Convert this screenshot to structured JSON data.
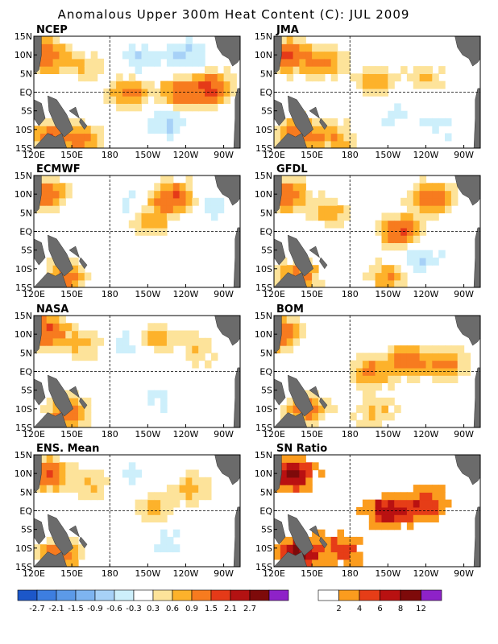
{
  "title": "Anomalous Upper 300m Heat Content (C): JUL 2009",
  "chart_data": [
    {
      "type": "heatmap",
      "title": "NCEP",
      "color_scale": "anomaly",
      "x_tick_labels": [
        "120E",
        "150E",
        "180",
        "150W",
        "120W",
        "90W"
      ],
      "y_tick_labels": [
        "15N",
        "10N",
        "5N",
        "EQ",
        "5S",
        "10S",
        "15S"
      ],
      "anomaly_centers": [
        {
          "lon": 130,
          "lat": 10,
          "value": 1.4
        },
        {
          "lon": 160,
          "lat": 7,
          "value": 0.6
        },
        {
          "lon": 195,
          "lat": 0,
          "value": 1.0
        },
        {
          "lon": 235,
          "lat": 0,
          "value": 1.2
        },
        {
          "lon": 260,
          "lat": 1,
          "value": 1.6
        },
        {
          "lon": 135,
          "lat": -12,
          "value": 1.4
        },
        {
          "lon": 160,
          "lat": -12,
          "value": 0.9
        },
        {
          "lon": 205,
          "lat": 9,
          "value": -0.6
        },
        {
          "lon": 240,
          "lat": 10,
          "value": -0.7
        },
        {
          "lon": 225,
          "lat": -8,
          "value": -0.7
        }
      ]
    },
    {
      "type": "heatmap",
      "title": "JMA",
      "color_scale": "anomaly",
      "x_tick_labels": [
        "120E",
        "150E",
        "180",
        "150W",
        "120W",
        "90W"
      ],
      "y_tick_labels": [
        "15N",
        "10N",
        "5N",
        "EQ",
        "5S",
        "10S",
        "15S"
      ],
      "anomaly_centers": [
        {
          "lon": 130,
          "lat": 10,
          "value": 1.6
        },
        {
          "lon": 160,
          "lat": 8,
          "value": 1.0
        },
        {
          "lon": 200,
          "lat": 3,
          "value": 0.8
        },
        {
          "lon": 240,
          "lat": 4,
          "value": 0.6
        },
        {
          "lon": 140,
          "lat": -11,
          "value": 1.4
        },
        {
          "lon": 170,
          "lat": -12,
          "value": 0.8
        },
        {
          "lon": 215,
          "lat": -6,
          "value": -0.4
        },
        {
          "lon": 250,
          "lat": -10,
          "value": -0.4
        }
      ]
    },
    {
      "type": "heatmap",
      "title": "ECMWF",
      "color_scale": "anomaly",
      "x_tick_labels": [
        "120E",
        "150E",
        "180",
        "150W",
        "120W",
        "90W"
      ],
      "y_tick_labels": [
        "15N",
        "10N",
        "5N",
        "EQ",
        "5S",
        "10S",
        "15S"
      ],
      "anomaly_centers": [
        {
          "lon": 130,
          "lat": 10,
          "value": 1.3
        },
        {
          "lon": 210,
          "lat": 3,
          "value": 0.9
        },
        {
          "lon": 230,
          "lat": 9,
          "value": 1.6
        },
        {
          "lon": 145,
          "lat": -12,
          "value": 1.2
        },
        {
          "lon": 195,
          "lat": 7,
          "value": -0.5
        },
        {
          "lon": 260,
          "lat": 6,
          "value": -0.4
        }
      ]
    },
    {
      "type": "heatmap",
      "title": "GFDL",
      "color_scale": "anomaly",
      "x_tick_labels": [
        "120E",
        "150E",
        "180",
        "150W",
        "120W",
        "90W"
      ],
      "y_tick_labels": [
        "15N",
        "10N",
        "5N",
        "EQ",
        "5S",
        "10S",
        "15S"
      ],
      "anomaly_centers": [
        {
          "lon": 130,
          "lat": 10,
          "value": 1.4
        },
        {
          "lon": 165,
          "lat": 5,
          "value": 0.8
        },
        {
          "lon": 220,
          "lat": 0,
          "value": 1.5
        },
        {
          "lon": 245,
          "lat": 9,
          "value": 1.4
        },
        {
          "lon": 140,
          "lat": -12,
          "value": 1.2
        },
        {
          "lon": 210,
          "lat": -12,
          "value": 0.9
        },
        {
          "lon": 235,
          "lat": -7,
          "value": -0.7
        }
      ]
    },
    {
      "type": "heatmap",
      "title": "NASA",
      "color_scale": "anomaly",
      "x_tick_labels": [
        "120E",
        "150E",
        "180",
        "150W",
        "120W",
        "90W"
      ],
      "y_tick_labels": [
        "15N",
        "10N",
        "5N",
        "EQ",
        "5S",
        "10S",
        "15S"
      ],
      "anomaly_centers": [
        {
          "lon": 130,
          "lat": 11,
          "value": 1.6
        },
        {
          "lon": 160,
          "lat": 7,
          "value": 0.7
        },
        {
          "lon": 215,
          "lat": 9,
          "value": 0.8
        },
        {
          "lon": 250,
          "lat": 6,
          "value": 0.6
        },
        {
          "lon": 145,
          "lat": -11,
          "value": 1.3
        },
        {
          "lon": 195,
          "lat": 8,
          "value": -0.5
        },
        {
          "lon": 220,
          "lat": -8,
          "value": -0.4
        }
      ]
    },
    {
      "type": "heatmap",
      "title": "BOM",
      "color_scale": "anomaly",
      "x_tick_labels": [
        "120E",
        "150E",
        "180",
        "150W",
        "120W",
        "90W"
      ],
      "y_tick_labels": [
        "15N",
        "10N",
        "5N",
        "EQ",
        "5S",
        "10S",
        "15S"
      ],
      "anomaly_centers": [
        {
          "lon": 125,
          "lat": 10,
          "value": 1.5
        },
        {
          "lon": 195,
          "lat": 0,
          "value": 1.0
        },
        {
          "lon": 225,
          "lat": 3,
          "value": 1.4
        },
        {
          "lon": 255,
          "lat": 2,
          "value": 1.0
        },
        {
          "lon": 145,
          "lat": -10,
          "value": 1.3
        },
        {
          "lon": 200,
          "lat": -11,
          "value": 0.7
        }
      ]
    },
    {
      "type": "heatmap",
      "title": "ENS. Mean",
      "color_scale": "anomaly",
      "x_tick_labels": [
        "120E",
        "150E",
        "180",
        "150W",
        "120W",
        "90W"
      ],
      "y_tick_labels": [
        "15N",
        "10N",
        "5N",
        "EQ",
        "5S",
        "10S",
        "15S"
      ],
      "anomaly_centers": [
        {
          "lon": 130,
          "lat": 10,
          "value": 1.5
        },
        {
          "lon": 165,
          "lat": 7,
          "value": 0.6
        },
        {
          "lon": 215,
          "lat": 1,
          "value": 0.8
        },
        {
          "lon": 245,
          "lat": 6,
          "value": 0.7
        },
        {
          "lon": 140,
          "lat": -12,
          "value": 1.3
        },
        {
          "lon": 200,
          "lat": 9,
          "value": -0.4
        },
        {
          "lon": 225,
          "lat": -8,
          "value": -0.4
        }
      ]
    },
    {
      "type": "heatmap",
      "title": "SN Ratio",
      "color_scale": "snr",
      "x_tick_labels": [
        "120E",
        "150E",
        "180",
        "150W",
        "120W",
        "90W"
      ],
      "y_tick_labels": [
        "15N",
        "10N",
        "5N",
        "EQ",
        "5S",
        "10S",
        "15S"
      ],
      "anomaly_centers": [
        {
          "lon": 135,
          "lat": 10,
          "value": 9
        },
        {
          "lon": 210,
          "lat": 0,
          "value": 8
        },
        {
          "lon": 240,
          "lat": 2,
          "value": 6
        },
        {
          "lon": 140,
          "lat": -11,
          "value": 9
        },
        {
          "lon": 175,
          "lat": -10,
          "value": 5
        }
      ]
    }
  ],
  "colorbars": {
    "anomaly": {
      "colors": [
        "#1c57c9",
        "#3d7ee0",
        "#5c9ae8",
        "#7eb4f0",
        "#a7d1f7",
        "#cdeffb",
        "#ffffff",
        "#fde39a",
        "#fdb22b",
        "#f77b1f",
        "#e53a18",
        "#b31212",
        "#7e0a0a",
        "#8e22c8"
      ],
      "labels": [
        "-2.7",
        "-2.1",
        "-1.5",
        "-0.9",
        "-0.6",
        "-0.3",
        "0.3",
        "0.6",
        "0.9",
        "1.5",
        "2.1",
        "2.7"
      ]
    },
    "snr": {
      "colors": [
        "#ffffff",
        "#fb9c1e",
        "#e63d17",
        "#b91111",
        "#7e0a0a",
        "#8e22c8"
      ],
      "labels": [
        "2",
        "4",
        "6",
        "8",
        "12"
      ]
    }
  }
}
